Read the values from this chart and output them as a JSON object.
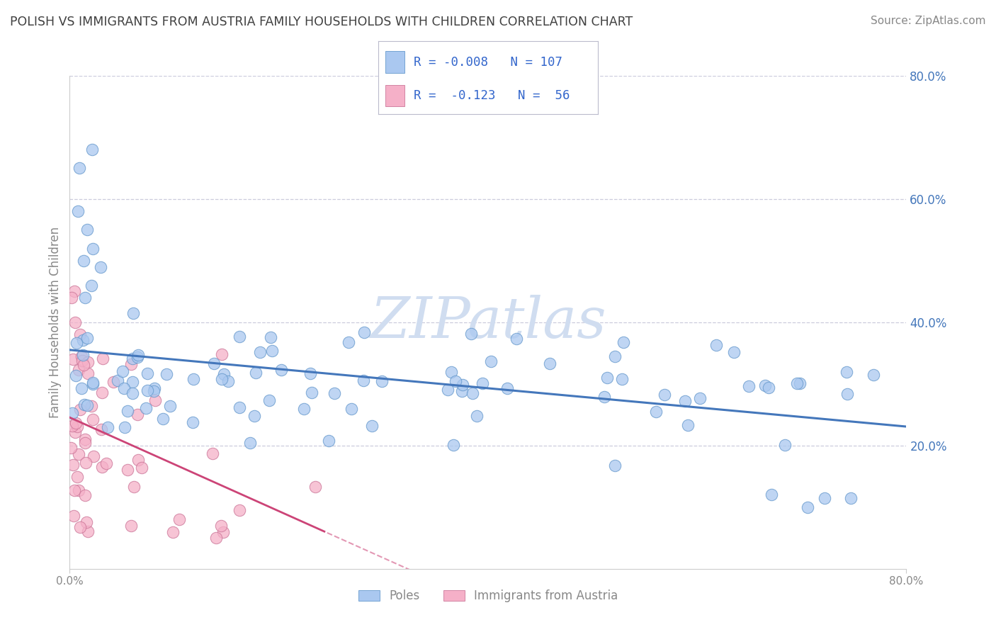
{
  "title": "POLISH VS IMMIGRANTS FROM AUSTRIA FAMILY HOUSEHOLDS WITH CHILDREN CORRELATION CHART",
  "source": "Source: ZipAtlas.com",
  "ylabel": "Family Households with Children",
  "xmin": 0.0,
  "xmax": 0.8,
  "ymin": 0.0,
  "ymax": 0.8,
  "right_yticks": [
    0.2,
    0.4,
    0.6,
    0.8
  ],
  "right_ytick_labels": [
    "20.0%",
    "40.0%",
    "60.0%",
    "80.0%"
  ],
  "xtick_positions": [
    0.0,
    0.8
  ],
  "xtick_labels": [
    "0.0%",
    "80.0%"
  ],
  "poles_R": -0.008,
  "poles_N": 107,
  "austria_R": -0.123,
  "austria_N": 56,
  "poles_color": "#aac8f0",
  "poles_edge_color": "#6699cc",
  "poles_line_color": "#4477bb",
  "austria_color": "#f5b0c8",
  "austria_edge_color": "#cc7799",
  "austria_line_color": "#cc4477",
  "watermark": "ZIPatlas",
  "watermark_color": "#d0ddf0",
  "background_color": "#ffffff",
  "grid_color": "#ccccdd",
  "title_color": "#404040",
  "legend_label_color": "#3366cc",
  "axes_label_color": "#888888",
  "right_axis_color": "#4477bb"
}
